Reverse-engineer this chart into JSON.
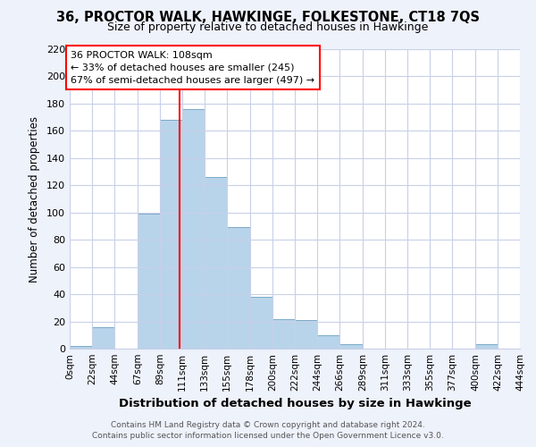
{
  "title": "36, PROCTOR WALK, HAWKINGE, FOLKESTONE, CT18 7QS",
  "subtitle": "Size of property relative to detached houses in Hawkinge",
  "xlabel": "Distribution of detached houses by size in Hawkinge",
  "ylabel": "Number of detached properties",
  "bar_color": "#b8d4ea",
  "bar_edge_color": "#7aaac8",
  "bin_edges": [
    0,
    22,
    44,
    67,
    89,
    111,
    133,
    155,
    178,
    200,
    222,
    244,
    266,
    289,
    311,
    333,
    355,
    377,
    400,
    422,
    444
  ],
  "bin_labels": [
    "0sqm",
    "22sqm",
    "44sqm",
    "67sqm",
    "89sqm",
    "111sqm",
    "133sqm",
    "155sqm",
    "178sqm",
    "200sqm",
    "222sqm",
    "244sqm",
    "266sqm",
    "289sqm",
    "311sqm",
    "333sqm",
    "355sqm",
    "377sqm",
    "400sqm",
    "422sqm",
    "444sqm"
  ],
  "counts": [
    2,
    16,
    0,
    99,
    168,
    176,
    126,
    89,
    38,
    22,
    21,
    10,
    3,
    0,
    0,
    0,
    0,
    0,
    3,
    0
  ],
  "ylim": [
    0,
    220
  ],
  "yticks": [
    0,
    20,
    40,
    60,
    80,
    100,
    120,
    140,
    160,
    180,
    200,
    220
  ],
  "vline_x": 108,
  "annotation_line1": "36 PROCTOR WALK: 108sqm",
  "annotation_line2": "← 33% of detached houses are smaller (245)",
  "annotation_line3": "67% of semi-detached houses are larger (497) →",
  "footer_line1": "Contains HM Land Registry data © Crown copyright and database right 2024.",
  "footer_line2": "Contains public sector information licensed under the Open Government Licence v3.0.",
  "background_color": "#eef2fb",
  "plot_bg_color": "#ffffff",
  "grid_color": "#c8d0e8"
}
